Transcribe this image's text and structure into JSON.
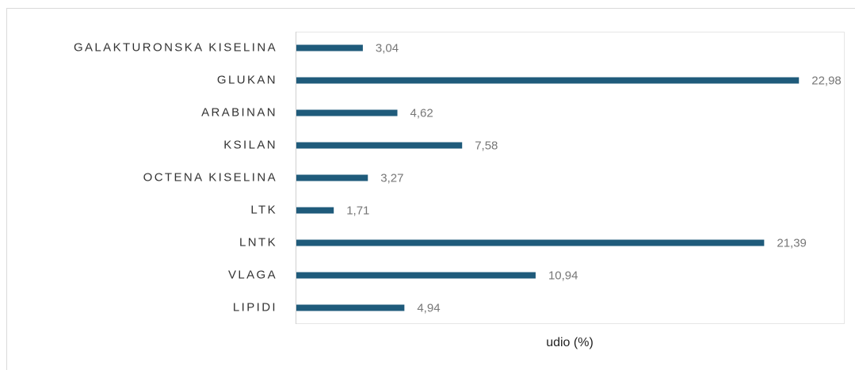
{
  "chart_data": {
    "type": "bar",
    "orientation": "horizontal",
    "categories": [
      "GALAKTURONSKA KISELINA",
      "GLUKAN",
      "ARABINAN",
      "KSILAN",
      "OCTENA KISELINA",
      "LTK",
      "LNTK",
      "VLAGA",
      "LIPIDI"
    ],
    "values": [
      3.04,
      22.98,
      4.62,
      7.58,
      3.27,
      1.71,
      21.39,
      10.94,
      4.94
    ],
    "value_labels": [
      "3,04",
      "22,98",
      "4,62",
      "7,58",
      "3,27",
      "1,71",
      "21,39",
      "10,94",
      "4,94"
    ],
    "color": "#1f5b7b",
    "x_label": "udio (%)",
    "xlim": [
      0,
      25
    ]
  }
}
